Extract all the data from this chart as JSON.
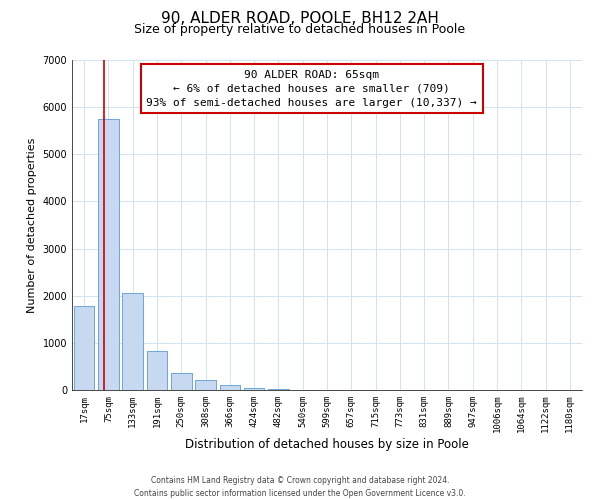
{
  "title": "90, ALDER ROAD, POOLE, BH12 2AH",
  "subtitle": "Size of property relative to detached houses in Poole",
  "xlabel": "Distribution of detached houses by size in Poole",
  "ylabel": "Number of detached properties",
  "bar_labels": [
    "17sqm",
    "75sqm",
    "133sqm",
    "191sqm",
    "250sqm",
    "308sqm",
    "366sqm",
    "424sqm",
    "482sqm",
    "540sqm",
    "599sqm",
    "657sqm",
    "715sqm",
    "773sqm",
    "831sqm",
    "889sqm",
    "947sqm",
    "1006sqm",
    "1064sqm",
    "1122sqm",
    "1180sqm"
  ],
  "bar_values": [
    1780,
    5750,
    2050,
    820,
    370,
    220,
    100,
    50,
    30,
    10,
    5,
    0,
    0,
    0,
    0,
    0,
    0,
    0,
    0,
    0,
    0
  ],
  "bar_color": "#c6d9f0",
  "bar_edge_color": "#5b9bd5",
  "ylim": [
    0,
    7000
  ],
  "yticks": [
    0,
    1000,
    2000,
    3000,
    4000,
    5000,
    6000,
    7000
  ],
  "property_label": "90 ALDER ROAD: 65sqm",
  "annotation_line1": "← 6% of detached houses are smaller (709)",
  "annotation_line2": "93% of semi-detached houses are larger (10,337) →",
  "vline_color": "#cc0000",
  "annotation_box_edge": "#cc0000",
  "footer1": "Contains HM Land Registry data © Crown copyright and database right 2024.",
  "footer2": "Contains public sector information licensed under the Open Government Licence v3.0.",
  "background_color": "#ffffff",
  "grid_color": "#d0e4f0",
  "title_fontsize": 11,
  "subtitle_fontsize": 9,
  "tick_fontsize": 6.5,
  "xlabel_fontsize": 8.5,
  "ylabel_fontsize": 8,
  "annotation_fontsize": 8,
  "footer_fontsize": 5.5
}
